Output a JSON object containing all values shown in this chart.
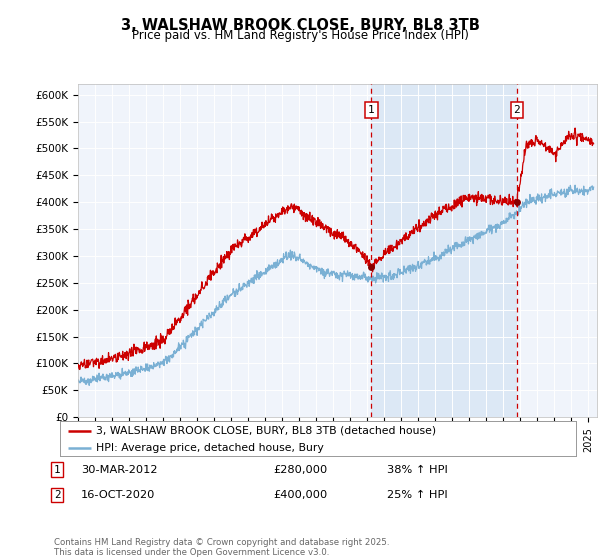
{
  "title_line1": "3, WALSHAW BROOK CLOSE, BURY, BL8 3TB",
  "title_line2": "Price paid vs. HM Land Registry's House Price Index (HPI)",
  "plot_bg_color": "#f0f4fb",
  "highlight_color": "#dce8f5",
  "ylim": [
    0,
    620000
  ],
  "yticks": [
    0,
    50000,
    100000,
    150000,
    200000,
    250000,
    300000,
    350000,
    400000,
    450000,
    500000,
    550000,
    600000
  ],
  "ytick_labels": [
    "£0",
    "£50K",
    "£100K",
    "£150K",
    "£200K",
    "£250K",
    "£300K",
    "£350K",
    "£400K",
    "£450K",
    "£500K",
    "£550K",
    "£600K"
  ],
  "sale1_date": 2012.24,
  "sale1_price": 280000,
  "sale1_label": "1",
  "sale1_text": "30-MAR-2012",
  "sale1_amount": "£280,000",
  "sale1_pct": "38% ↑ HPI",
  "sale2_date": 2020.79,
  "sale2_price": 400000,
  "sale2_label": "2",
  "sale2_text": "16-OCT-2020",
  "sale2_amount": "£400,000",
  "sale2_pct": "25% ↑ HPI",
  "red_line_color": "#cc0000",
  "blue_line_color": "#7ab0d4",
  "dashed_line_color": "#cc0000",
  "legend_label1": "3, WALSHAW BROOK CLOSE, BURY, BL8 3TB (detached house)",
  "legend_label2": "HPI: Average price, detached house, Bury",
  "footer": "Contains HM Land Registry data © Crown copyright and database right 2025.\nThis data is licensed under the Open Government Licence v3.0.",
  "xmin": 1995,
  "xmax": 2025.5
}
